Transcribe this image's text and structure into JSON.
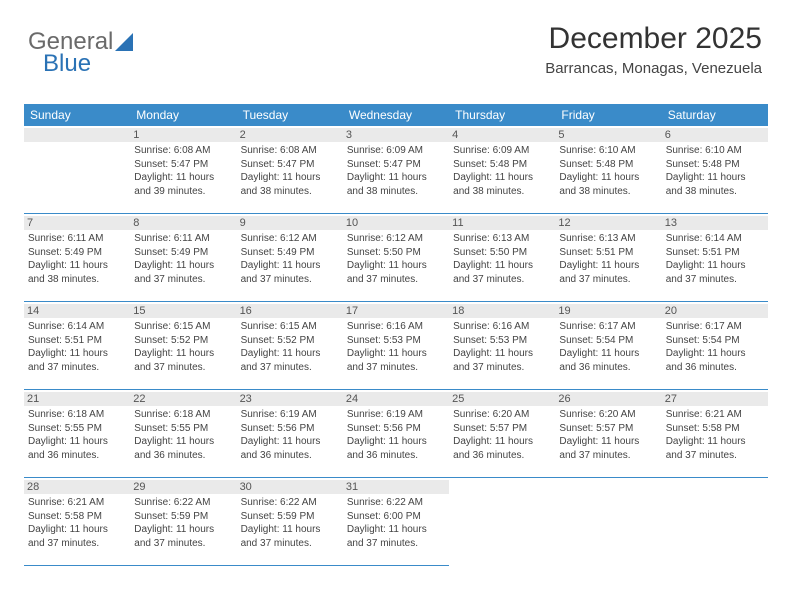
{
  "brand": {
    "left": "General",
    "right": "Blue"
  },
  "title": "December 2025",
  "location": "Barrancas, Monagas, Venezuela",
  "colors": {
    "header_bg": "#3a8bc9",
    "header_text": "#ffffff",
    "daynum_bg": "#eaeaea",
    "cell_border": "#3a8bc9",
    "body_text": "#444444",
    "title_text": "#333333"
  },
  "days_of_week": [
    "Sunday",
    "Monday",
    "Tuesday",
    "Wednesday",
    "Thursday",
    "Friday",
    "Saturday"
  ],
  "cells": [
    {
      "day": "",
      "sunrise": "",
      "sunset": "",
      "daylight1": "",
      "daylight2": ""
    },
    {
      "day": "1",
      "sunrise": "Sunrise: 6:08 AM",
      "sunset": "Sunset: 5:47 PM",
      "daylight1": "Daylight: 11 hours",
      "daylight2": "and 39 minutes."
    },
    {
      "day": "2",
      "sunrise": "Sunrise: 6:08 AM",
      "sunset": "Sunset: 5:47 PM",
      "daylight1": "Daylight: 11 hours",
      "daylight2": "and 38 minutes."
    },
    {
      "day": "3",
      "sunrise": "Sunrise: 6:09 AM",
      "sunset": "Sunset: 5:47 PM",
      "daylight1": "Daylight: 11 hours",
      "daylight2": "and 38 minutes."
    },
    {
      "day": "4",
      "sunrise": "Sunrise: 6:09 AM",
      "sunset": "Sunset: 5:48 PM",
      "daylight1": "Daylight: 11 hours",
      "daylight2": "and 38 minutes."
    },
    {
      "day": "5",
      "sunrise": "Sunrise: 6:10 AM",
      "sunset": "Sunset: 5:48 PM",
      "daylight1": "Daylight: 11 hours",
      "daylight2": "and 38 minutes."
    },
    {
      "day": "6",
      "sunrise": "Sunrise: 6:10 AM",
      "sunset": "Sunset: 5:48 PM",
      "daylight1": "Daylight: 11 hours",
      "daylight2": "and 38 minutes."
    },
    {
      "day": "7",
      "sunrise": "Sunrise: 6:11 AM",
      "sunset": "Sunset: 5:49 PM",
      "daylight1": "Daylight: 11 hours",
      "daylight2": "and 38 minutes."
    },
    {
      "day": "8",
      "sunrise": "Sunrise: 6:11 AM",
      "sunset": "Sunset: 5:49 PM",
      "daylight1": "Daylight: 11 hours",
      "daylight2": "and 37 minutes."
    },
    {
      "day": "9",
      "sunrise": "Sunrise: 6:12 AM",
      "sunset": "Sunset: 5:49 PM",
      "daylight1": "Daylight: 11 hours",
      "daylight2": "and 37 minutes."
    },
    {
      "day": "10",
      "sunrise": "Sunrise: 6:12 AM",
      "sunset": "Sunset: 5:50 PM",
      "daylight1": "Daylight: 11 hours",
      "daylight2": "and 37 minutes."
    },
    {
      "day": "11",
      "sunrise": "Sunrise: 6:13 AM",
      "sunset": "Sunset: 5:50 PM",
      "daylight1": "Daylight: 11 hours",
      "daylight2": "and 37 minutes."
    },
    {
      "day": "12",
      "sunrise": "Sunrise: 6:13 AM",
      "sunset": "Sunset: 5:51 PM",
      "daylight1": "Daylight: 11 hours",
      "daylight2": "and 37 minutes."
    },
    {
      "day": "13",
      "sunrise": "Sunrise: 6:14 AM",
      "sunset": "Sunset: 5:51 PM",
      "daylight1": "Daylight: 11 hours",
      "daylight2": "and 37 minutes."
    },
    {
      "day": "14",
      "sunrise": "Sunrise: 6:14 AM",
      "sunset": "Sunset: 5:51 PM",
      "daylight1": "Daylight: 11 hours",
      "daylight2": "and 37 minutes."
    },
    {
      "day": "15",
      "sunrise": "Sunrise: 6:15 AM",
      "sunset": "Sunset: 5:52 PM",
      "daylight1": "Daylight: 11 hours",
      "daylight2": "and 37 minutes."
    },
    {
      "day": "16",
      "sunrise": "Sunrise: 6:15 AM",
      "sunset": "Sunset: 5:52 PM",
      "daylight1": "Daylight: 11 hours",
      "daylight2": "and 37 minutes."
    },
    {
      "day": "17",
      "sunrise": "Sunrise: 6:16 AM",
      "sunset": "Sunset: 5:53 PM",
      "daylight1": "Daylight: 11 hours",
      "daylight2": "and 37 minutes."
    },
    {
      "day": "18",
      "sunrise": "Sunrise: 6:16 AM",
      "sunset": "Sunset: 5:53 PM",
      "daylight1": "Daylight: 11 hours",
      "daylight2": "and 37 minutes."
    },
    {
      "day": "19",
      "sunrise": "Sunrise: 6:17 AM",
      "sunset": "Sunset: 5:54 PM",
      "daylight1": "Daylight: 11 hours",
      "daylight2": "and 36 minutes."
    },
    {
      "day": "20",
      "sunrise": "Sunrise: 6:17 AM",
      "sunset": "Sunset: 5:54 PM",
      "daylight1": "Daylight: 11 hours",
      "daylight2": "and 36 minutes."
    },
    {
      "day": "21",
      "sunrise": "Sunrise: 6:18 AM",
      "sunset": "Sunset: 5:55 PM",
      "daylight1": "Daylight: 11 hours",
      "daylight2": "and 36 minutes."
    },
    {
      "day": "22",
      "sunrise": "Sunrise: 6:18 AM",
      "sunset": "Sunset: 5:55 PM",
      "daylight1": "Daylight: 11 hours",
      "daylight2": "and 36 minutes."
    },
    {
      "day": "23",
      "sunrise": "Sunrise: 6:19 AM",
      "sunset": "Sunset: 5:56 PM",
      "daylight1": "Daylight: 11 hours",
      "daylight2": "and 36 minutes."
    },
    {
      "day": "24",
      "sunrise": "Sunrise: 6:19 AM",
      "sunset": "Sunset: 5:56 PM",
      "daylight1": "Daylight: 11 hours",
      "daylight2": "and 36 minutes."
    },
    {
      "day": "25",
      "sunrise": "Sunrise: 6:20 AM",
      "sunset": "Sunset: 5:57 PM",
      "daylight1": "Daylight: 11 hours",
      "daylight2": "and 36 minutes."
    },
    {
      "day": "26",
      "sunrise": "Sunrise: 6:20 AM",
      "sunset": "Sunset: 5:57 PM",
      "daylight1": "Daylight: 11 hours",
      "daylight2": "and 37 minutes."
    },
    {
      "day": "27",
      "sunrise": "Sunrise: 6:21 AM",
      "sunset": "Sunset: 5:58 PM",
      "daylight1": "Daylight: 11 hours",
      "daylight2": "and 37 minutes."
    },
    {
      "day": "28",
      "sunrise": "Sunrise: 6:21 AM",
      "sunset": "Sunset: 5:58 PM",
      "daylight1": "Daylight: 11 hours",
      "daylight2": "and 37 minutes."
    },
    {
      "day": "29",
      "sunrise": "Sunrise: 6:22 AM",
      "sunset": "Sunset: 5:59 PM",
      "daylight1": "Daylight: 11 hours",
      "daylight2": "and 37 minutes."
    },
    {
      "day": "30",
      "sunrise": "Sunrise: 6:22 AM",
      "sunset": "Sunset: 5:59 PM",
      "daylight1": "Daylight: 11 hours",
      "daylight2": "and 37 minutes."
    },
    {
      "day": "31",
      "sunrise": "Sunrise: 6:22 AM",
      "sunset": "Sunset: 6:00 PM",
      "daylight1": "Daylight: 11 hours",
      "daylight2": "and 37 minutes."
    },
    {
      "day": "",
      "sunrise": "",
      "sunset": "",
      "daylight1": "",
      "daylight2": ""
    },
    {
      "day": "",
      "sunrise": "",
      "sunset": "",
      "daylight1": "",
      "daylight2": ""
    },
    {
      "day": "",
      "sunrise": "",
      "sunset": "",
      "daylight1": "",
      "daylight2": ""
    }
  ]
}
